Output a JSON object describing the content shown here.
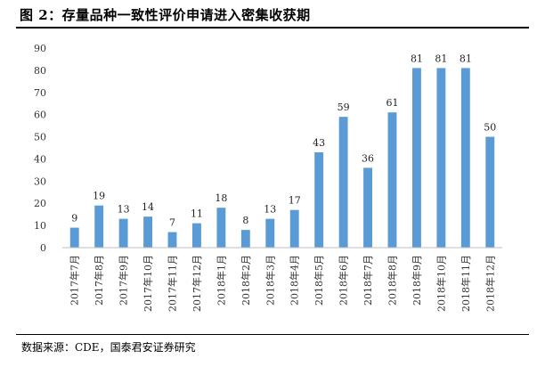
{
  "figure": {
    "title": "图 2：存量品种一致性评价申请进入密集收获期",
    "source": "数据来源：CDE，国泰君安证券研究"
  },
  "chart_data": {
    "type": "bar",
    "categories": [
      "2017年7月",
      "2017年8月",
      "2017年9月",
      "2017年10月",
      "2017年11月",
      "2017年12月",
      "2018年1月",
      "2018年2月",
      "2018年3月",
      "2018年4月",
      "2018年5月",
      "2018年6月",
      "2018年7月",
      "2018年8月",
      "2018年9月",
      "2018年10月",
      "2018年11月",
      "2018年12月"
    ],
    "values": [
      9,
      19,
      13,
      14,
      7,
      11,
      18,
      8,
      13,
      17,
      43,
      59,
      36,
      61,
      81,
      81,
      81,
      50
    ],
    "ylim": [
      0,
      90
    ],
    "yticks": [
      0,
      10,
      20,
      30,
      40,
      50,
      60,
      70,
      80,
      90
    ],
    "data_labels": true,
    "grid": false,
    "bar_color": "#5b9bd5"
  }
}
